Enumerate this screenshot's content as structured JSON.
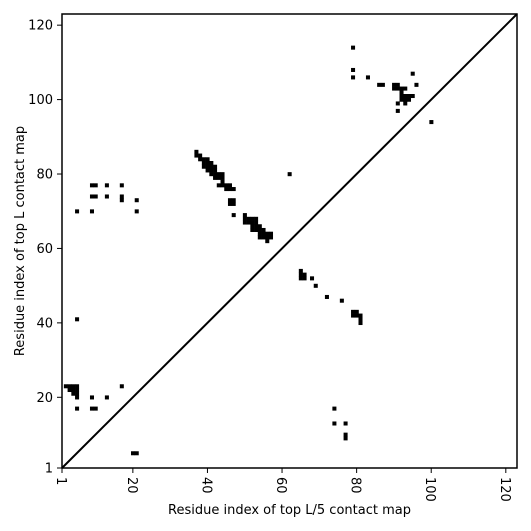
{
  "chart_data": {
    "type": "scatter",
    "title": "",
    "xlabel": "Residue index of top L/5 contact map",
    "ylabel": "Residue index of top L contact map",
    "xlim": [
      1,
      123
    ],
    "ylim": [
      1,
      123
    ],
    "x_ticks": [
      1,
      20,
      40,
      60,
      80,
      100,
      120
    ],
    "y_ticks": [
      1,
      20,
      40,
      60,
      80,
      100,
      120
    ],
    "x_tick_rotation": -90,
    "grid": false,
    "marker": "square",
    "marker_color": "#000000",
    "diagonal": {
      "from": [
        1,
        1
      ],
      "to": [
        123,
        123
      ],
      "color": "#000000"
    },
    "series": [
      {
        "region": "upper-left",
        "points": [
          [
            37,
            86
          ],
          [
            37,
            85
          ],
          [
            38,
            85
          ],
          [
            38,
            84
          ],
          [
            39,
            84
          ],
          [
            39,
            83
          ],
          [
            40,
            84
          ],
          [
            40,
            83
          ],
          [
            40,
            82
          ],
          [
            41,
            83
          ],
          [
            41,
            82
          ],
          [
            42,
            82
          ],
          [
            42,
            81
          ],
          [
            39,
            82
          ],
          [
            40,
            81
          ],
          [
            41,
            81
          ],
          [
            41,
            80
          ],
          [
            42,
            80
          ],
          [
            42,
            79
          ],
          [
            43,
            80
          ],
          [
            43,
            79
          ],
          [
            44,
            80
          ],
          [
            44,
            79
          ],
          [
            44,
            78
          ],
          [
            43,
            77
          ],
          [
            44,
            77
          ],
          [
            45,
            77
          ],
          [
            46,
            77
          ],
          [
            46,
            76
          ],
          [
            47,
            76
          ],
          [
            45,
            76
          ],
          [
            46,
            73
          ],
          [
            46,
            72
          ],
          [
            47,
            73
          ],
          [
            47,
            72
          ],
          [
            47,
            69
          ],
          [
            50,
            69
          ],
          [
            50,
            68
          ],
          [
            51,
            68
          ],
          [
            51,
            67
          ],
          [
            52,
            68
          ],
          [
            52,
            67
          ],
          [
            53,
            68
          ],
          [
            53,
            67
          ],
          [
            50,
            67
          ],
          [
            52,
            66
          ],
          [
            53,
            66
          ],
          [
            52,
            65
          ],
          [
            53,
            65
          ],
          [
            54,
            66
          ],
          [
            54,
            65
          ],
          [
            55,
            65
          ],
          [
            54,
            64
          ],
          [
            55,
            64
          ],
          [
            56,
            64
          ],
          [
            56,
            63
          ],
          [
            57,
            64
          ],
          [
            57,
            63
          ],
          [
            54,
            63
          ],
          [
            55,
            63
          ],
          [
            56,
            62
          ],
          [
            62,
            80
          ],
          [
            65,
            54
          ],
          [
            65,
            53
          ],
          [
            66,
            53
          ],
          [
            65,
            52
          ],
          [
            66,
            52
          ],
          [
            68,
            52
          ],
          [
            69,
            50
          ],
          [
            72,
            47
          ],
          [
            76,
            46
          ],
          [
            79,
            43
          ],
          [
            80,
            43
          ],
          [
            80,
            42
          ],
          [
            81,
            42
          ],
          [
            81,
            41
          ],
          [
            81,
            40
          ],
          [
            79,
            42
          ],
          [
            79,
            114
          ],
          [
            79,
            108
          ],
          [
            79,
            106
          ],
          [
            83,
            106
          ],
          [
            86,
            104
          ],
          [
            87,
            104
          ],
          [
            90,
            104
          ],
          [
            91,
            104
          ],
          [
            90,
            103
          ],
          [
            91,
            103
          ],
          [
            92,
            103
          ],
          [
            93,
            103
          ],
          [
            92,
            102
          ],
          [
            92,
            101
          ],
          [
            93,
            101
          ],
          [
            94,
            101
          ],
          [
            95,
            101
          ],
          [
            92,
            100
          ],
          [
            93,
            100
          ],
          [
            94,
            100
          ],
          [
            91,
            99
          ],
          [
            93,
            99
          ],
          [
            91,
            97
          ],
          [
            95,
            107
          ],
          [
            96,
            104
          ],
          [
            100,
            94
          ],
          [
            5,
            70
          ],
          [
            9,
            77
          ],
          [
            10,
            77
          ],
          [
            13,
            77
          ],
          [
            17,
            77
          ],
          [
            9,
            74
          ],
          [
            10,
            74
          ],
          [
            13,
            74
          ],
          [
            17,
            74
          ],
          [
            17,
            73
          ],
          [
            21,
            73
          ],
          [
            9,
            70
          ],
          [
            21,
            70
          ],
          [
            5,
            41
          ],
          [
            2,
            23
          ],
          [
            3,
            23
          ],
          [
            4,
            23
          ],
          [
            5,
            23
          ],
          [
            3,
            22
          ],
          [
            4,
            22
          ],
          [
            5,
            22
          ],
          [
            4,
            21
          ],
          [
            5,
            21
          ],
          [
            5,
            20
          ],
          [
            9,
            20
          ],
          [
            13,
            20
          ],
          [
            17,
            23
          ],
          [
            5,
            17
          ],
          [
            9,
            17
          ],
          [
            10,
            17
          ]
        ]
      },
      {
        "region": "lower-right",
        "points": [
          [
            74,
            17
          ],
          [
            74,
            13
          ],
          [
            77,
            13
          ],
          [
            77,
            10
          ],
          [
            77,
            9
          ],
          [
            20,
            5
          ],
          [
            21,
            5
          ]
        ]
      }
    ]
  }
}
